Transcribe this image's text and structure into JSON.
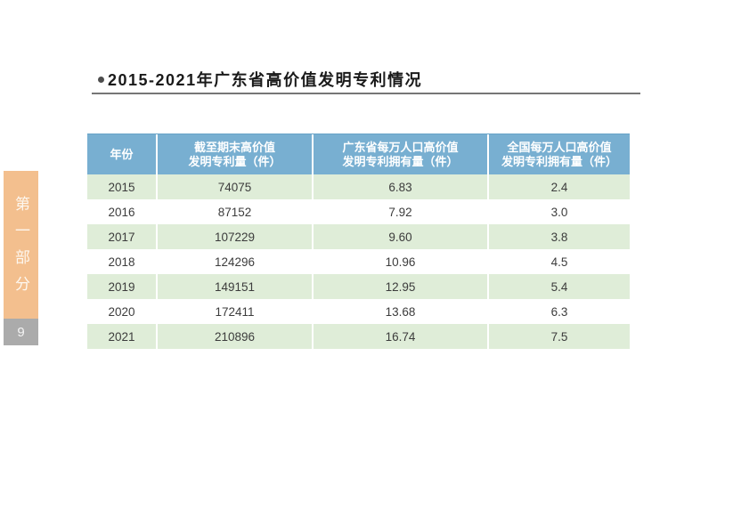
{
  "slide": {
    "title": "2015-2021年广东省高价值发明专利情况",
    "sidebar": {
      "section_label": "第一部分",
      "page_number": "9"
    },
    "icons": {
      "bullet": "circle-dot"
    },
    "colors": {
      "header_blue": "#78AFD1",
      "row_green": "#DFEDD8",
      "sidebar_orange": "#F3BF8E",
      "page_box_gray": "#ABABAB",
      "underline_gray": "#767676",
      "body_text": "#3C3C3C"
    }
  },
  "table": {
    "headers": {
      "year": "年份",
      "col2_line1": "截至期末高价值",
      "col2_line2": "发明专利量（件）",
      "col3_line1": "广东省每万人口高价值",
      "col3_line2": "发明专利拥有量（件）",
      "col4_line1": "全国每万人口高价值",
      "col4_line2": "发明专利拥有量（件）"
    },
    "rows": [
      {
        "year": "2015",
        "total": "74075",
        "gd": "6.83",
        "national": "2.4"
      },
      {
        "year": "2016",
        "total": "87152",
        "gd": "7.92",
        "national": "3.0"
      },
      {
        "year": "2017",
        "total": "107229",
        "gd": "9.60",
        "national": "3.8"
      },
      {
        "year": "2018",
        "total": "124296",
        "gd": "10.96",
        "national": "4.5"
      },
      {
        "year": "2019",
        "total": "149151",
        "gd": "12.95",
        "national": "5.4"
      },
      {
        "year": "2020",
        "total": "172411",
        "gd": "13.68",
        "national": "6.3"
      },
      {
        "year": "2021",
        "total": "210896",
        "gd": "16.74",
        "national": "7.5"
      }
    ]
  }
}
